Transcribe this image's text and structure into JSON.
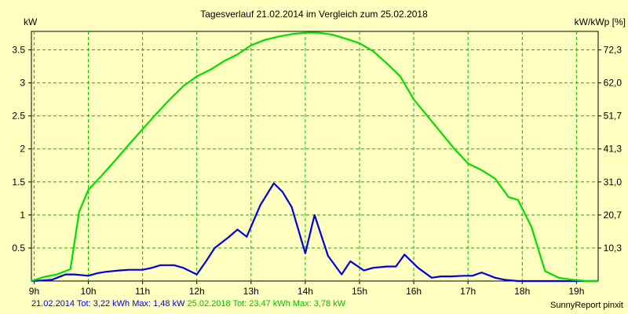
{
  "chart_data": {
    "type": "line",
    "title": "Tagesverlauf 21.02.2014 im Vergleich zum 25.02.2018",
    "ylabel_left": "kW",
    "ylabel_right": "kW/kWp [%]",
    "xlim": [
      8.95,
      19.4
    ],
    "ylim": [
      0,
      3.78
    ],
    "grid": true,
    "x_ticks": [
      {
        "x": 9,
        "label": "9h"
      },
      {
        "x": 10,
        "label": "10h"
      },
      {
        "x": 11,
        "label": "11h"
      },
      {
        "x": 12,
        "label": "12h"
      },
      {
        "x": 13,
        "label": "13h"
      },
      {
        "x": 14,
        "label": "14h"
      },
      {
        "x": 15,
        "label": "15h"
      },
      {
        "x": 16,
        "label": "16h"
      },
      {
        "x": 17,
        "label": "17h"
      },
      {
        "x": 18,
        "label": "18h"
      },
      {
        "x": 19,
        "label": "19h"
      }
    ],
    "y_ticks_left": [
      {
        "y": 0.5,
        "label": "0.5"
      },
      {
        "y": 1,
        "label": "1"
      },
      {
        "y": 1.5,
        "label": "1.5"
      },
      {
        "y": 2,
        "label": "2"
      },
      {
        "y": 2.5,
        "label": "2.5"
      },
      {
        "y": 3,
        "label": "3"
      },
      {
        "y": 3.5,
        "label": "3.5"
      }
    ],
    "y_ticks_right": [
      {
        "y": 0.5,
        "label": "10,3"
      },
      {
        "y": 1,
        "label": "20,7"
      },
      {
        "y": 1.5,
        "label": "31,0"
      },
      {
        "y": 2,
        "label": "41,3"
      },
      {
        "y": 2.5,
        "label": "51,7"
      },
      {
        "y": 3,
        "label": "62,0"
      },
      {
        "y": 3.5,
        "label": "72,3"
      }
    ],
    "series": [
      {
        "name": "21.02.2014",
        "color": "#0000e0",
        "points": [
          [
            8.95,
            0.0
          ],
          [
            9.17,
            0.01
          ],
          [
            9.33,
            0.02
          ],
          [
            9.58,
            0.1
          ],
          [
            9.75,
            0.1
          ],
          [
            10.0,
            0.08
          ],
          [
            10.17,
            0.12
          ],
          [
            10.33,
            0.14
          ],
          [
            10.58,
            0.16
          ],
          [
            10.75,
            0.17
          ],
          [
            11.0,
            0.17
          ],
          [
            11.17,
            0.2
          ],
          [
            11.33,
            0.24
          ],
          [
            11.58,
            0.24
          ],
          [
            11.75,
            0.2
          ],
          [
            12.0,
            0.1
          ],
          [
            12.17,
            0.3
          ],
          [
            12.33,
            0.5
          ],
          [
            12.58,
            0.66
          ],
          [
            12.75,
            0.78
          ],
          [
            12.92,
            0.67
          ],
          [
            13.17,
            1.15
          ],
          [
            13.42,
            1.48
          ],
          [
            13.58,
            1.35
          ],
          [
            13.75,
            1.12
          ],
          [
            14.0,
            0.42
          ],
          [
            14.17,
            1.0
          ],
          [
            14.42,
            0.38
          ],
          [
            14.67,
            0.1
          ],
          [
            14.83,
            0.3
          ],
          [
            15.08,
            0.16
          ],
          [
            15.25,
            0.2
          ],
          [
            15.5,
            0.22
          ],
          [
            15.67,
            0.22
          ],
          [
            15.83,
            0.4
          ],
          [
            16.08,
            0.2
          ],
          [
            16.33,
            0.05
          ],
          [
            16.5,
            0.07
          ],
          [
            16.67,
            0.07
          ],
          [
            16.92,
            0.08
          ],
          [
            17.08,
            0.08
          ],
          [
            17.25,
            0.13
          ],
          [
            17.5,
            0.05
          ],
          [
            17.67,
            0.02
          ],
          [
            17.92,
            0.0
          ],
          [
            18.5,
            0.0
          ],
          [
            19.4,
            0.0
          ]
        ]
      },
      {
        "name": "25.02.2018",
        "color": "#00e000",
        "points": [
          [
            8.95,
            0.0
          ],
          [
            9.17,
            0.06
          ],
          [
            9.42,
            0.1
          ],
          [
            9.67,
            0.18
          ],
          [
            9.83,
            1.05
          ],
          [
            10.0,
            1.38
          ],
          [
            10.25,
            1.6
          ],
          [
            10.5,
            1.83
          ],
          [
            10.75,
            2.07
          ],
          [
            11.0,
            2.3
          ],
          [
            11.25,
            2.53
          ],
          [
            11.5,
            2.75
          ],
          [
            11.75,
            2.95
          ],
          [
            12.0,
            3.1
          ],
          [
            12.25,
            3.2
          ],
          [
            12.5,
            3.33
          ],
          [
            12.75,
            3.43
          ],
          [
            13.0,
            3.57
          ],
          [
            13.25,
            3.65
          ],
          [
            13.5,
            3.7
          ],
          [
            13.75,
            3.74
          ],
          [
            14.0,
            3.76
          ],
          [
            14.25,
            3.76
          ],
          [
            14.5,
            3.73
          ],
          [
            14.75,
            3.67
          ],
          [
            15.0,
            3.6
          ],
          [
            15.25,
            3.48
          ],
          [
            15.5,
            3.3
          ],
          [
            15.75,
            3.1
          ],
          [
            16.0,
            2.75
          ],
          [
            16.25,
            2.5
          ],
          [
            16.5,
            2.25
          ],
          [
            16.75,
            2.0
          ],
          [
            17.0,
            1.78
          ],
          [
            17.25,
            1.68
          ],
          [
            17.5,
            1.55
          ],
          [
            17.75,
            1.27
          ],
          [
            17.92,
            1.23
          ],
          [
            18.17,
            0.82
          ],
          [
            18.42,
            0.15
          ],
          [
            18.67,
            0.05
          ],
          [
            18.92,
            0.02
          ],
          [
            19.17,
            0.0
          ],
          [
            19.4,
            0.0
          ]
        ]
      }
    ]
  },
  "footer": {
    "series1_text": "21.02.2014 Tot: 3,22 kWh Max: 1,48 kW",
    "series2_text": "25.02.2018 Tot: 23,47 kWh Max: 3,78 kW",
    "credit": "SunnyReport pinxit"
  }
}
